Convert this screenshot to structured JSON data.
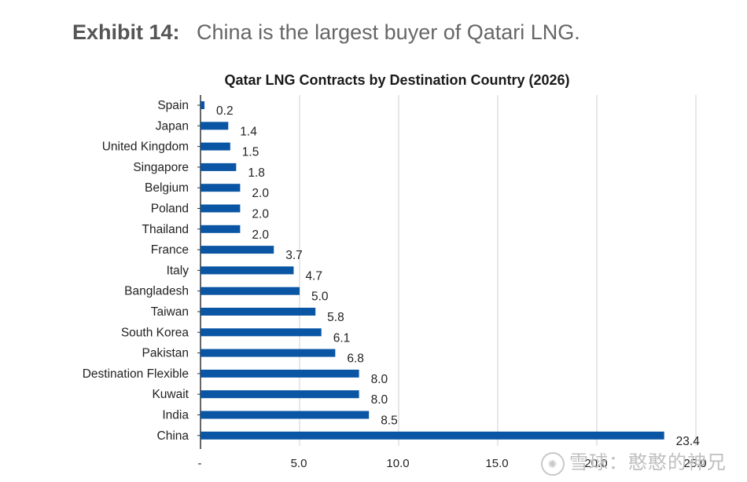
{
  "exhibit": {
    "number": "Exhibit 14:",
    "caption": "China is the largest buyer of Qatari LNG."
  },
  "watermark": {
    "text": "雪球：憨憨的神兄",
    "icon": "snowball-logo-icon"
  },
  "colors": {
    "bar": "#0a56a4",
    "grid": "#cfcfcf",
    "axis": "#333333"
  },
  "chart_data": {
    "type": "bar",
    "orientation": "horizontal",
    "title": "Qatar LNG Contracts by Destination Country (2026)",
    "xlabel": "",
    "ylabel": "",
    "xlim": [
      0,
      25
    ],
    "grid": true,
    "x_ticks": [
      0,
      5,
      10,
      15,
      20,
      25
    ],
    "x_tick_labels": [
      "-",
      "5.0",
      "10.0",
      "15.0",
      "20.0",
      "25.0"
    ],
    "categories": [
      "Spain",
      "Japan",
      "United Kingdom",
      "Singapore",
      "Belgium",
      "Poland",
      "Thailand",
      "France",
      "Italy",
      "Bangladesh",
      "Taiwan",
      "South Korea",
      "Pakistan",
      "Destination Flexible",
      "Kuwait",
      "India",
      "China"
    ],
    "values": [
      0.2,
      1.4,
      1.5,
      1.8,
      2.0,
      2.0,
      2.0,
      3.7,
      4.7,
      5.0,
      5.8,
      6.1,
      6.8,
      8.0,
      8.0,
      8.5,
      23.4
    ],
    "value_labels": [
      "0.2",
      "1.4",
      "1.5",
      "1.8",
      "2.0",
      "2.0",
      "2.0",
      "3.7",
      "4.7",
      "5.0",
      "5.8",
      "6.1",
      "6.8",
      "8.0",
      "8.0",
      "8.5",
      "23.4"
    ]
  }
}
